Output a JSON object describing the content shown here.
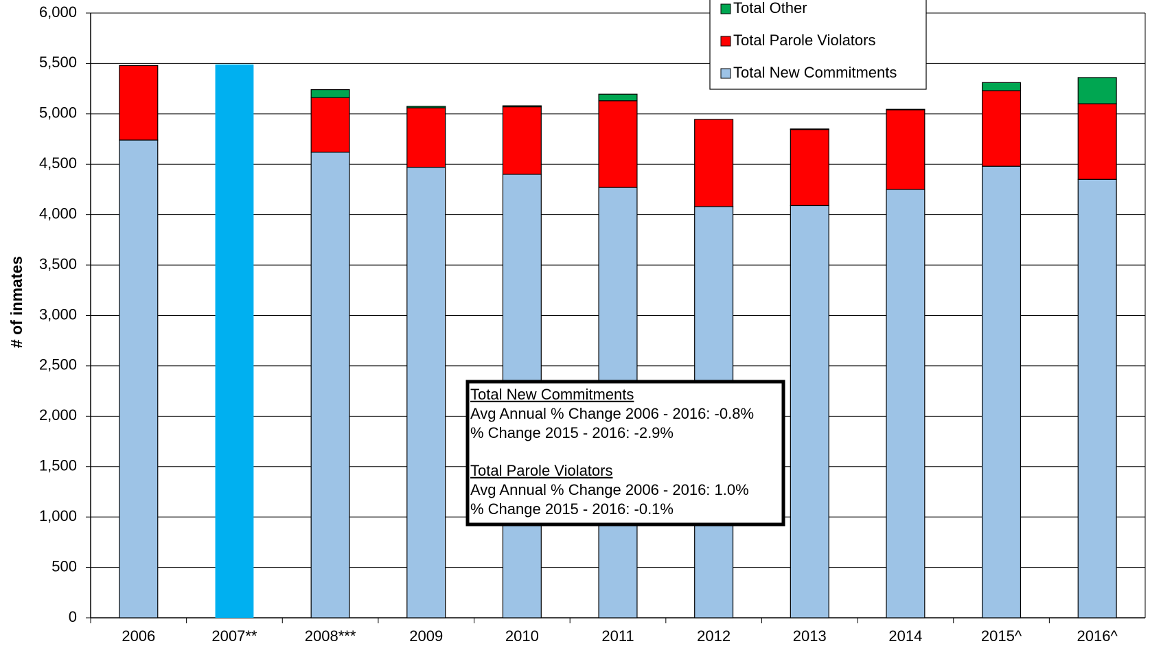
{
  "chart_data": {
    "type": "stacked_bar",
    "y_label": "# of inmates",
    "categories": [
      "2006",
      "2007**",
      "2008***",
      "2009",
      "2010",
      "2011",
      "2012",
      "2013",
      "2014",
      "2015^",
      "2016^"
    ],
    "series": [
      {
        "name": "Total New Commitments",
        "color": "#9dc3e6",
        "colors": [
          "#9dc3e6",
          "#00b0f0",
          "#9dc3e6",
          "#9dc3e6",
          "#9dc3e6",
          "#9dc3e6",
          "#9dc3e6",
          "#9dc3e6",
          "#9dc3e6",
          "#9dc3e6",
          "#9dc3e6"
        ],
        "values": [
          4740,
          5490,
          4620,
          4470,
          4400,
          4270,
          4080,
          4090,
          4250,
          4480,
          4350
        ]
      },
      {
        "name": "Total Parole Violators",
        "color": "#ff0000",
        "values": [
          740,
          null,
          540,
          590,
          670,
          860,
          865,
          755,
          790,
          750,
          750
        ]
      },
      {
        "name": "Total Other",
        "color": "#00a651",
        "values": [
          null,
          null,
          80,
          15,
          10,
          65,
          null,
          5,
          5,
          80,
          260
        ]
      }
    ],
    "ylim": [
      0,
      6000
    ],
    "yticks": [
      0,
      500,
      {
        "value": 1000,
        "label": "1,000"
      },
      {
        "value": 1500,
        "label": "1,500"
      },
      {
        "value": 2000,
        "label": "2,000"
      },
      {
        "value": 2500,
        "label": "2,500"
      },
      {
        "value": 3000,
        "label": "3,000"
      },
      {
        "value": 3500,
        "label": "3,500"
      },
      {
        "value": 4000,
        "label": "4,000"
      },
      {
        "value": 4500,
        "label": "4,500"
      },
      {
        "value": 5000,
        "label": "5,000"
      },
      {
        "value": 5500,
        "label": "5,500"
      },
      {
        "value": 6000,
        "label": "6,000"
      }
    ],
    "grid": true,
    "legend": "top-right",
    "annotations": [
      {
        "heading": "Total New Commitments",
        "lines": [
          "Avg Annual % Change 2006 - 2016: -0.8%",
          "% Change 2015 - 2016: -2.9%"
        ]
      },
      {
        "heading": "Total Parole Violators",
        "lines": [
          "Avg Annual % Change 2006 - 2016: 1.0%",
          "% Change 2015 - 2016: -0.1%"
        ]
      }
    ]
  }
}
